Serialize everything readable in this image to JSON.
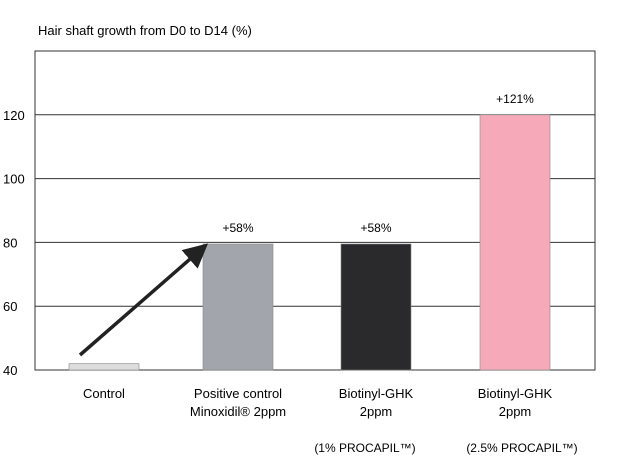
{
  "chart_data": {
    "type": "bar",
    "title": "Hair shaft growth from D0 to D14 (%)",
    "xlabel": "",
    "ylabel": "",
    "ylim": [
      40,
      140
    ],
    "yticks": [
      40,
      60,
      80,
      100,
      120
    ],
    "grid": true,
    "legend": "none",
    "categories": [
      {
        "lines": [
          "Control"
        ],
        "note": ""
      },
      {
        "lines": [
          "Positive control",
          "Minoxidil® 2ppm"
        ],
        "note": ""
      },
      {
        "lines": [
          "Biotinyl-GHK",
          "2ppm"
        ],
        "note": "(1% PROCAPIL™)"
      },
      {
        "lines": [
          "Biotinyl-GHK",
          "2ppm"
        ],
        "note": "(2.5% PROCAPIL™)"
      }
    ],
    "values": [
      42,
      79.5,
      79.5,
      120
    ],
    "data_labels": [
      "",
      "+58%",
      "+58%",
      "+121%"
    ],
    "colors": [
      "#dcdcdc",
      "#a2a5ab",
      "#2a2a2c",
      "#f6aab9"
    ],
    "annotation": "arrow-from-control-to-positive-control"
  }
}
